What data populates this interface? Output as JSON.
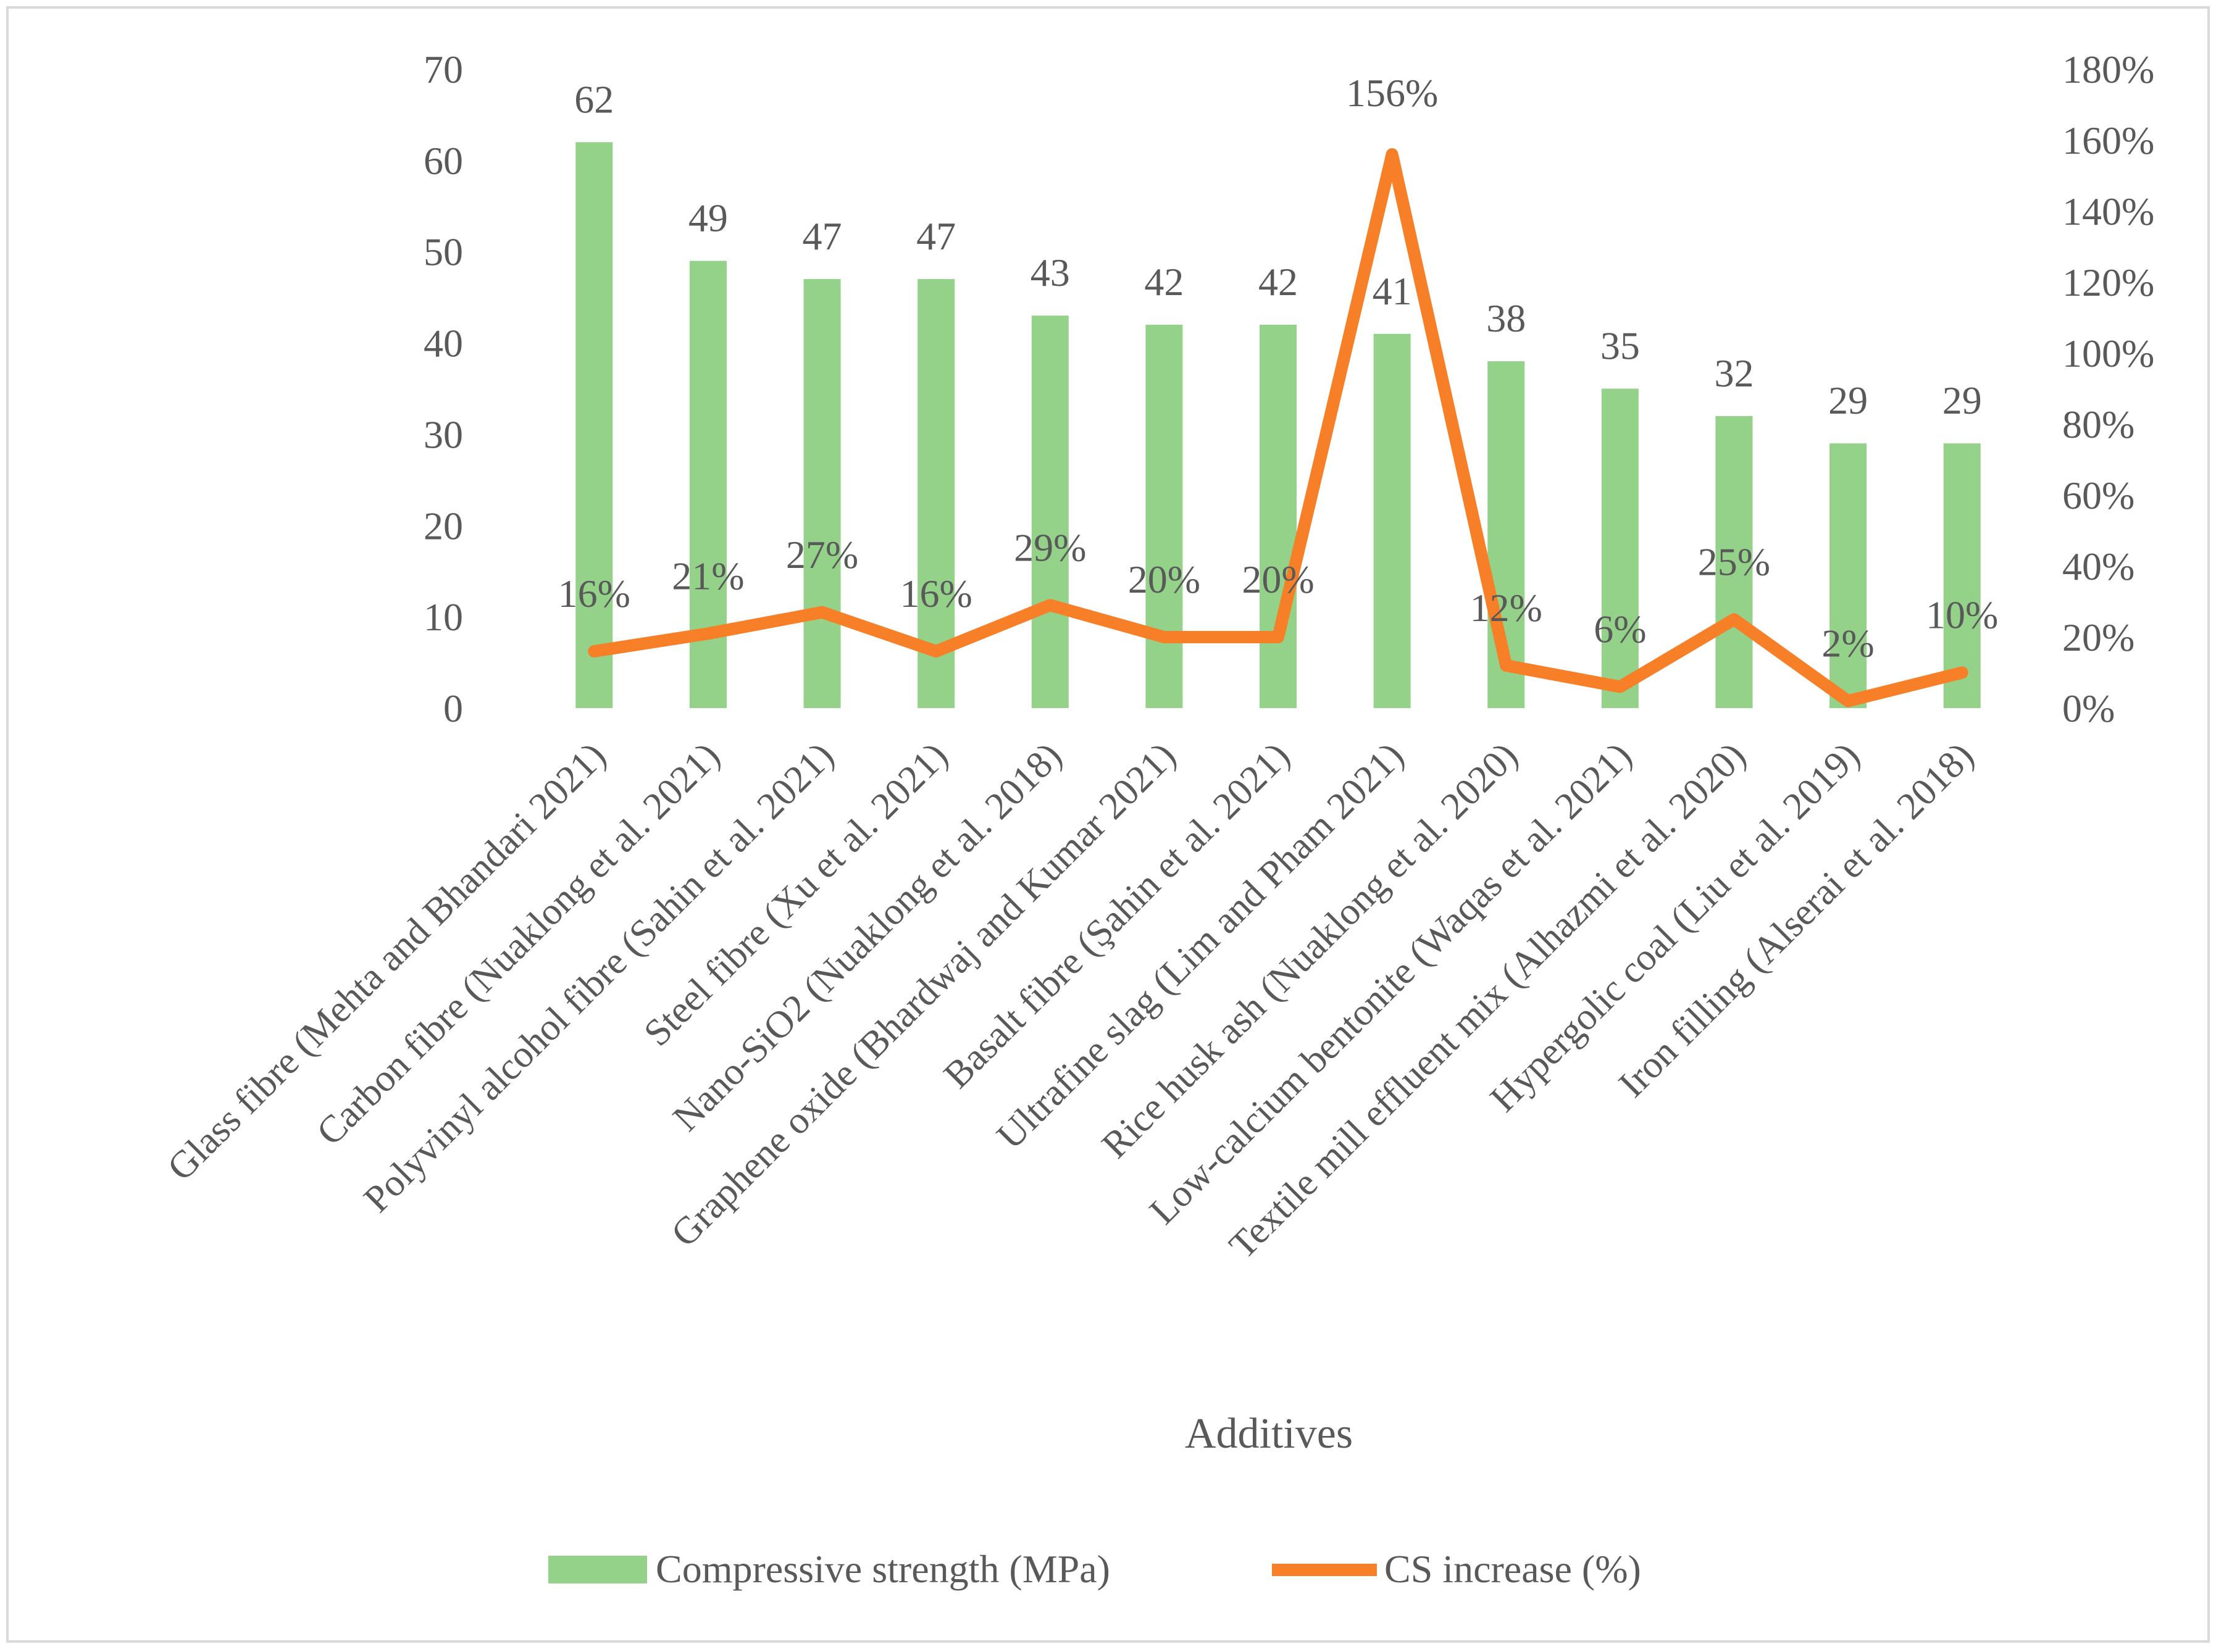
{
  "colors": {
    "bar": "#93d288",
    "line": "#f77f27",
    "text": "#595959",
    "border": "#d9d9d9"
  },
  "chart_data": {
    "type": "bar",
    "title": "",
    "xlabel": "Additives",
    "ylabel": "",
    "categories": [
      "Glass fibre (Mehta and Bhandari 2021)",
      "Carbon fibre (Nuaklong et al. 2021)",
      "Polyvinyl alcohol fibre (Sahin et al. 2021)",
      "Steel fibre (Xu et al. 2021)",
      "Nano-SiO2 (Nuaklong et al. 2018)",
      "Graphene oxide (Bhardwaj and Kumar 2021)",
      "Basalt fibre (Şahin et al. 2021)",
      "Ultrafine slag (Lim and Pham 2021)",
      "Rice husk ash (Nuaklong et al. 2020)",
      "Low-calcium bentonite (Waqas et al. 2021)",
      "Textile mill effluent mix (Alhazmi et al. 2020)",
      "Hypergolic coal (Liu et al. 2019)",
      "Iron filling (Alserai et al. 2018)"
    ],
    "series": [
      {
        "name": "Compressive strength (MPa)",
        "type": "bar",
        "axis": "left",
        "values": [
          62,
          49,
          47,
          47,
          43,
          42,
          42,
          41,
          38,
          35,
          32,
          29,
          29
        ],
        "labels": [
          "62",
          "49",
          "47",
          "47",
          "43",
          "42",
          "42",
          "41",
          "38",
          "35",
          "32",
          "29",
          "29"
        ]
      },
      {
        "name": "CS increase (%)",
        "type": "line",
        "axis": "right",
        "values": [
          16,
          21,
          27,
          16,
          29,
          20,
          20,
          156,
          12,
          6,
          25,
          2,
          10
        ],
        "labels": [
          "16%",
          "21%",
          "27%",
          "16%",
          "29%",
          "20%",
          "20%",
          "156%",
          "12%",
          "6%",
          "25%",
          "2%",
          "10%"
        ]
      }
    ],
    "y_left": {
      "min": 0,
      "max": 70,
      "ticks": [
        "0",
        "10",
        "20",
        "30",
        "40",
        "50",
        "60",
        "70"
      ]
    },
    "y_right": {
      "min": 0,
      "max": 180,
      "ticks": [
        "0%",
        "20%",
        "40%",
        "60%",
        "80%",
        "100%",
        "120%",
        "140%",
        "160%",
        "180%"
      ]
    },
    "grid": false,
    "legend": {
      "position": "bottom"
    }
  }
}
